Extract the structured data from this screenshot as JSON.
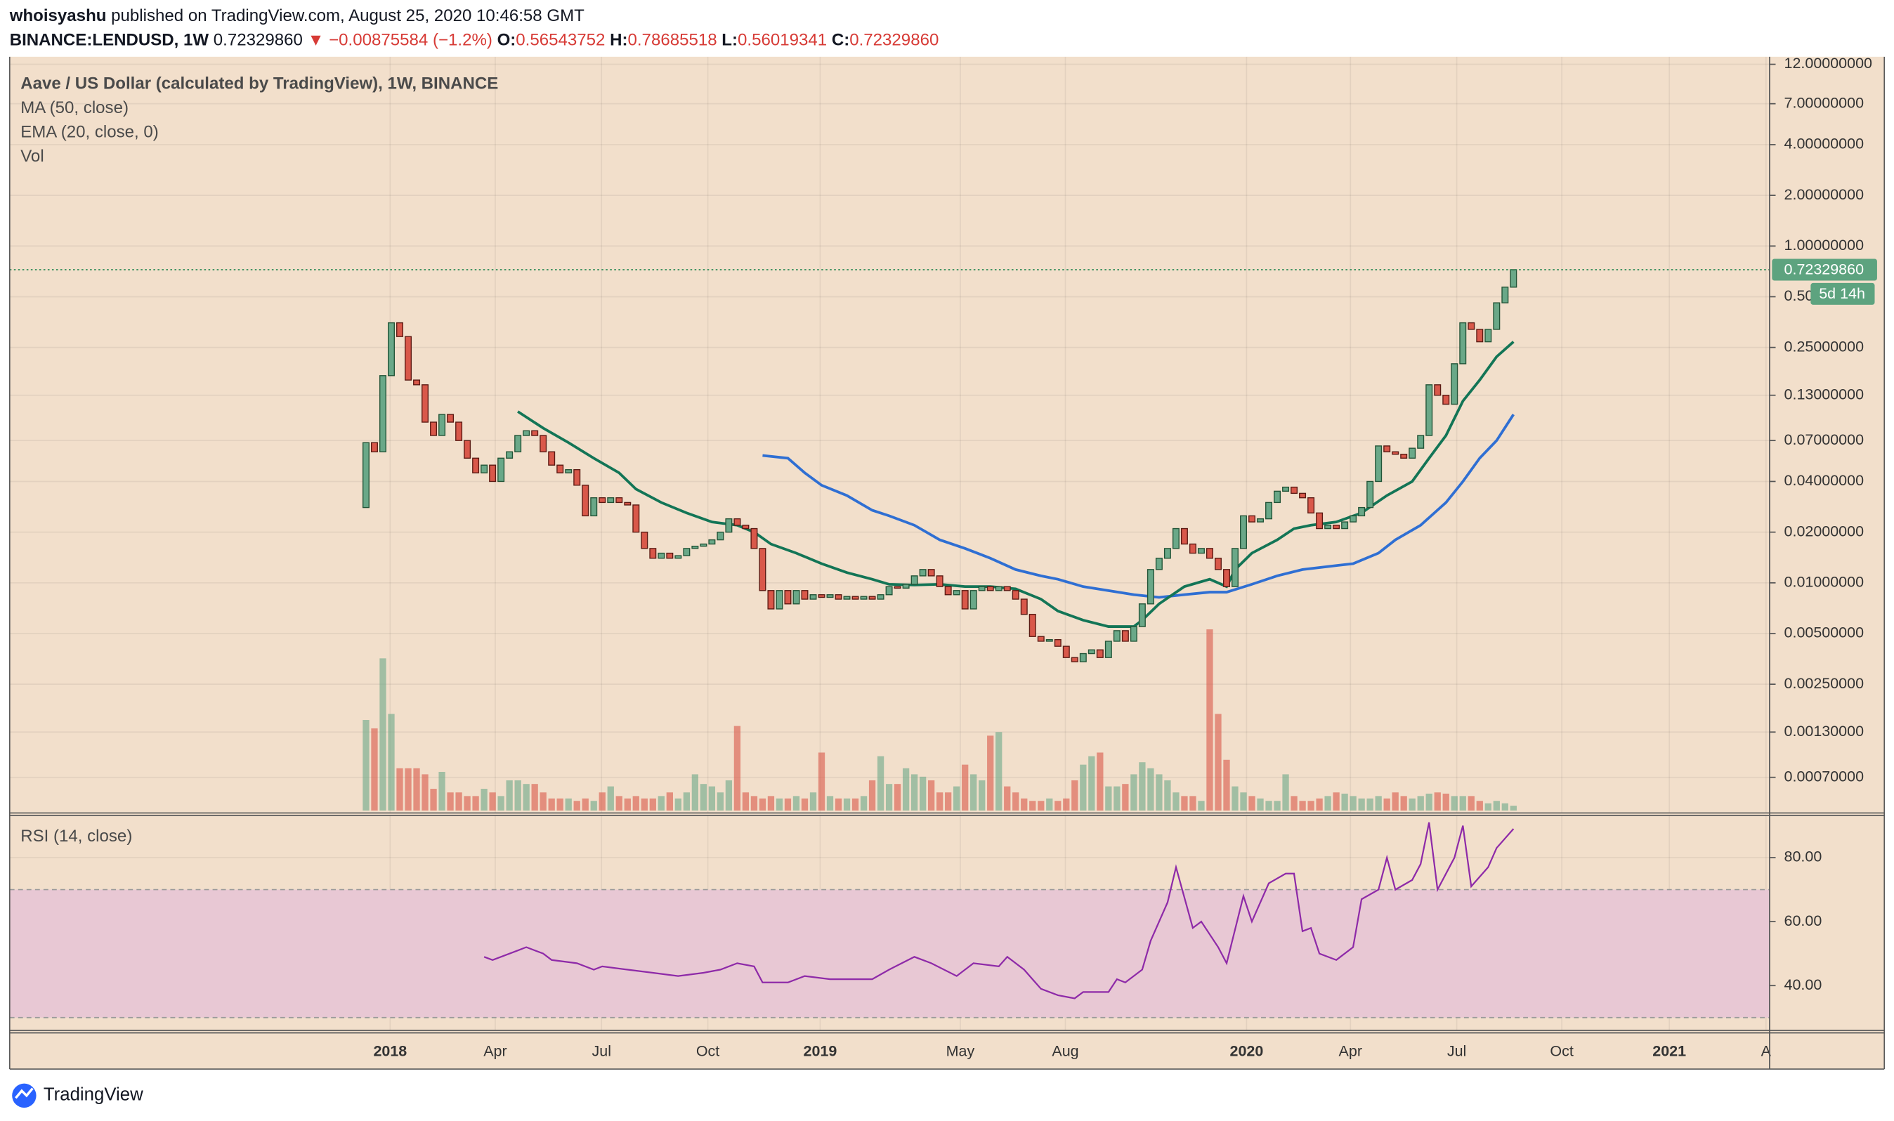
{
  "header": {
    "author": "whoisyashu",
    "published": "published on TradingView.com, August 25, 2020 10:46:58 GMT",
    "symbol": "BINANCE:LENDUSD, 1W",
    "last": "0.72329860",
    "change": "▼ −0.00875584 (−1.2%)",
    "ohlc": [
      {
        "label": "O:",
        "value": "0.56543752"
      },
      {
        "label": "H:",
        "value": "0.78685518"
      },
      {
        "label": "L:",
        "value": "0.56019341"
      },
      {
        "label": "C:",
        "value": "0.72329860"
      }
    ]
  },
  "time_axis": [
    "2018",
    "Apr",
    "Jul",
    "Oct",
    "2019",
    "May",
    "Aug",
    "2020",
    "Apr",
    "Jul",
    "Oct",
    "2021",
    "A"
  ],
  "chart_data": [
    {
      "type": "candlestick",
      "title": "Aave / US Dollar (calculated by TradingView), 1W, BINANCE",
      "first_open": 0.028,
      "close": [
        0.068,
        0.06,
        0.17,
        0.35,
        0.29,
        0.16,
        0.15,
        0.09,
        0.075,
        0.1,
        0.09,
        0.07,
        0.055,
        0.045,
        0.05,
        0.04,
        0.055,
        0.06,
        0.075,
        0.08,
        0.075,
        0.06,
        0.05,
        0.045,
        0.047,
        0.038,
        0.025,
        0.032,
        0.03,
        0.032,
        0.03,
        0.029,
        0.02,
        0.016,
        0.014,
        0.015,
        0.014,
        0.0145,
        0.016,
        0.0165,
        0.017,
        0.018,
        0.02,
        0.024,
        0.022,
        0.021,
        0.016,
        0.009,
        0.007,
        0.009,
        0.0075,
        0.009,
        0.008,
        0.0085,
        0.0082,
        0.0085,
        0.008,
        0.0083,
        0.008,
        0.0083,
        0.008,
        0.0085,
        0.0095,
        0.0093,
        0.0098,
        0.011,
        0.012,
        0.011,
        0.0095,
        0.0085,
        0.009,
        0.007,
        0.009,
        0.0095,
        0.009,
        0.0095,
        0.009,
        0.008,
        0.0065,
        0.0048,
        0.0045,
        0.0046,
        0.0042,
        0.0036,
        0.0034,
        0.0038,
        0.004,
        0.0036,
        0.0045,
        0.0052,
        0.0045,
        0.0055,
        0.0075,
        0.012,
        0.014,
        0.016,
        0.021,
        0.017,
        0.015,
        0.016,
        0.014,
        0.012,
        0.0095,
        0.016,
        0.025,
        0.023,
        0.024,
        0.03,
        0.035,
        0.037,
        0.034,
        0.032,
        0.026,
        0.021,
        0.022,
        0.021,
        0.023,
        0.025,
        0.028,
        0.04,
        0.065,
        0.06,
        0.058,
        0.055,
        0.063,
        0.075,
        0.15,
        0.13,
        0.115,
        0.2,
        0.35,
        0.32,
        0.27,
        0.32,
        0.46,
        0.57,
        0.7232986
      ],
      "up_color": "#6aa888",
      "down_color": "#d9584a",
      "series": [
        {
          "name": "MA (50, close)",
          "color": "#2f6fd3",
          "x": [
            47,
            50,
            52,
            54,
            57,
            60,
            62,
            65,
            68,
            71,
            74,
            77,
            80,
            82,
            85,
            88,
            91,
            94,
            97,
            100,
            102,
            105,
            108,
            111,
            114,
            117,
            120,
            122,
            125,
            128,
            130,
            132,
            134,
            136
          ],
          "values": [
            0.057,
            0.055,
            0.045,
            0.038,
            0.033,
            0.027,
            0.025,
            0.022,
            0.018,
            0.016,
            0.014,
            0.012,
            0.011,
            0.0105,
            0.0095,
            0.009,
            0.0085,
            0.0082,
            0.0085,
            0.0088,
            0.0088,
            0.0098,
            0.011,
            0.012,
            0.0125,
            0.013,
            0.015,
            0.018,
            0.022,
            0.03,
            0.04,
            0.055,
            0.07,
            0.1
          ]
        },
        {
          "name": "EMA (20, close, 0)",
          "color": "#137556",
          "x": [
            18,
            21,
            24,
            27,
            30,
            32,
            35,
            38,
            41,
            44,
            46,
            48,
            51,
            54,
            57,
            60,
            62,
            65,
            68,
            71,
            74,
            77,
            80,
            82,
            85,
            88,
            91,
            92,
            94,
            97,
            100,
            102,
            103,
            105,
            108,
            110,
            112,
            115,
            118,
            121,
            124,
            126,
            128,
            130,
            132,
            134,
            136
          ],
          "values": [
            0.104,
            0.083,
            0.068,
            0.055,
            0.045,
            0.036,
            0.03,
            0.026,
            0.023,
            0.022,
            0.02,
            0.017,
            0.015,
            0.013,
            0.0115,
            0.0105,
            0.0098,
            0.0097,
            0.0098,
            0.0095,
            0.0095,
            0.0092,
            0.008,
            0.0068,
            0.006,
            0.0055,
            0.0055,
            0.006,
            0.0075,
            0.0095,
            0.0105,
            0.0095,
            0.012,
            0.015,
            0.018,
            0.021,
            0.022,
            0.023,
            0.026,
            0.033,
            0.04,
            0.055,
            0.075,
            0.12,
            0.16,
            0.22,
            0.27
          ]
        }
      ],
      "volume": {
        "name": "Vol",
        "values": [
          75,
          68,
          126,
          80,
          35,
          35,
          35,
          30,
          18,
          32,
          15,
          15,
          12,
          12,
          18,
          15,
          12,
          25,
          25,
          22,
          22,
          15,
          10,
          10,
          10,
          8,
          10,
          8,
          15,
          20,
          12,
          10,
          12,
          10,
          10,
          12,
          15,
          10,
          15,
          30,
          22,
          20,
          15,
          25,
          70,
          15,
          12,
          10,
          12,
          10,
          10,
          12,
          10,
          15,
          48,
          12,
          10,
          10,
          10,
          12,
          25,
          45,
          22,
          22,
          35,
          30,
          28,
          25,
          15,
          15,
          20,
          38,
          30,
          25,
          62,
          65,
          20,
          15,
          10,
          8,
          8,
          10,
          8,
          10,
          25,
          38,
          45,
          48,
          20,
          20,
          22,
          30,
          40,
          35,
          30,
          25,
          15,
          12,
          12,
          8,
          150,
          80,
          42,
          20,
          15,
          12,
          10,
          8,
          8,
          30,
          12,
          8,
          8,
          10,
          12,
          15,
          14,
          12,
          10,
          10,
          12,
          10,
          15,
          12,
          10,
          12,
          14,
          15,
          14,
          12,
          12,
          12,
          8,
          6,
          8,
          6,
          4
        ]
      },
      "log_scale": true,
      "grid": true,
      "ylim": [
        0.00043,
        13.3
      ],
      "yticks": [
        {
          "value": 12,
          "label": "12.00000000"
        },
        {
          "value": 7,
          "label": "7.00000000"
        },
        {
          "value": 4,
          "label": "4.00000000"
        },
        {
          "value": 2,
          "label": "2.00000000"
        },
        {
          "value": 1,
          "label": "1.00000000"
        },
        {
          "value": 0.5,
          "label": "0.50000000"
        },
        {
          "value": 0.25,
          "label": "0.25000000"
        },
        {
          "value": 0.13,
          "label": "0.13000000"
        },
        {
          "value": 0.07,
          "label": "0.07000000"
        },
        {
          "value": 0.04,
          "label": "0.04000000"
        },
        {
          "value": 0.02,
          "label": "0.02000000"
        },
        {
          "value": 0.01,
          "label": "0.01000000"
        },
        {
          "value": 0.005,
          "label": "0.00500000"
        },
        {
          "value": 0.0025,
          "label": "0.00250000"
        },
        {
          "value": 0.0013,
          "label": "0.00130000"
        },
        {
          "value": 0.0007,
          "label": "0.00070000"
        }
      ],
      "last_price": {
        "value": 0.7232986,
        "label": "0.72329860"
      },
      "countdown": "5d 14h"
    },
    {
      "type": "line",
      "title": "RSI (14, close)",
      "color": "#8e2aa8",
      "x": [
        14,
        15,
        18,
        19,
        21,
        22,
        25,
        27,
        28,
        31,
        34,
        37,
        40,
        42,
        44,
        46,
        47,
        50,
        52,
        55,
        60,
        62,
        65,
        67,
        70,
        72,
        75,
        76,
        78,
        80,
        82,
        84,
        85,
        88,
        89,
        90,
        92,
        93,
        95,
        96,
        98,
        99,
        101,
        102,
        104,
        105,
        107,
        109,
        110,
        111,
        112,
        113,
        115,
        117,
        118,
        120,
        121,
        122,
        124,
        125,
        126,
        127,
        129,
        130,
        131,
        133,
        134,
        136
      ],
      "values": [
        49,
        48,
        51,
        52,
        50,
        48,
        47,
        45,
        46,
        45,
        44,
        43,
        44,
        45,
        47,
        46,
        41,
        41,
        43,
        42,
        42,
        45,
        49,
        47,
        43,
        47,
        46,
        49,
        45,
        39,
        37,
        36,
        38,
        38,
        42,
        41,
        45,
        54,
        66,
        77,
        58,
        60,
        52,
        47,
        68,
        60,
        72,
        75,
        75,
        57,
        58,
        50,
        48,
        52,
        67,
        70,
        80,
        70,
        73,
        78,
        91,
        70,
        80,
        90,
        71,
        77,
        83,
        89
      ],
      "band": [
        30,
        70
      ],
      "band_color": "#e8c8d4",
      "ylim": [
        26,
        93.2
      ],
      "yticks": [
        {
          "value": 80,
          "label": "80.00"
        },
        {
          "value": 60,
          "label": "60.00"
        },
        {
          "value": 40,
          "label": "40.00"
        }
      ]
    }
  ],
  "footer": {
    "brand": "TradingView"
  }
}
